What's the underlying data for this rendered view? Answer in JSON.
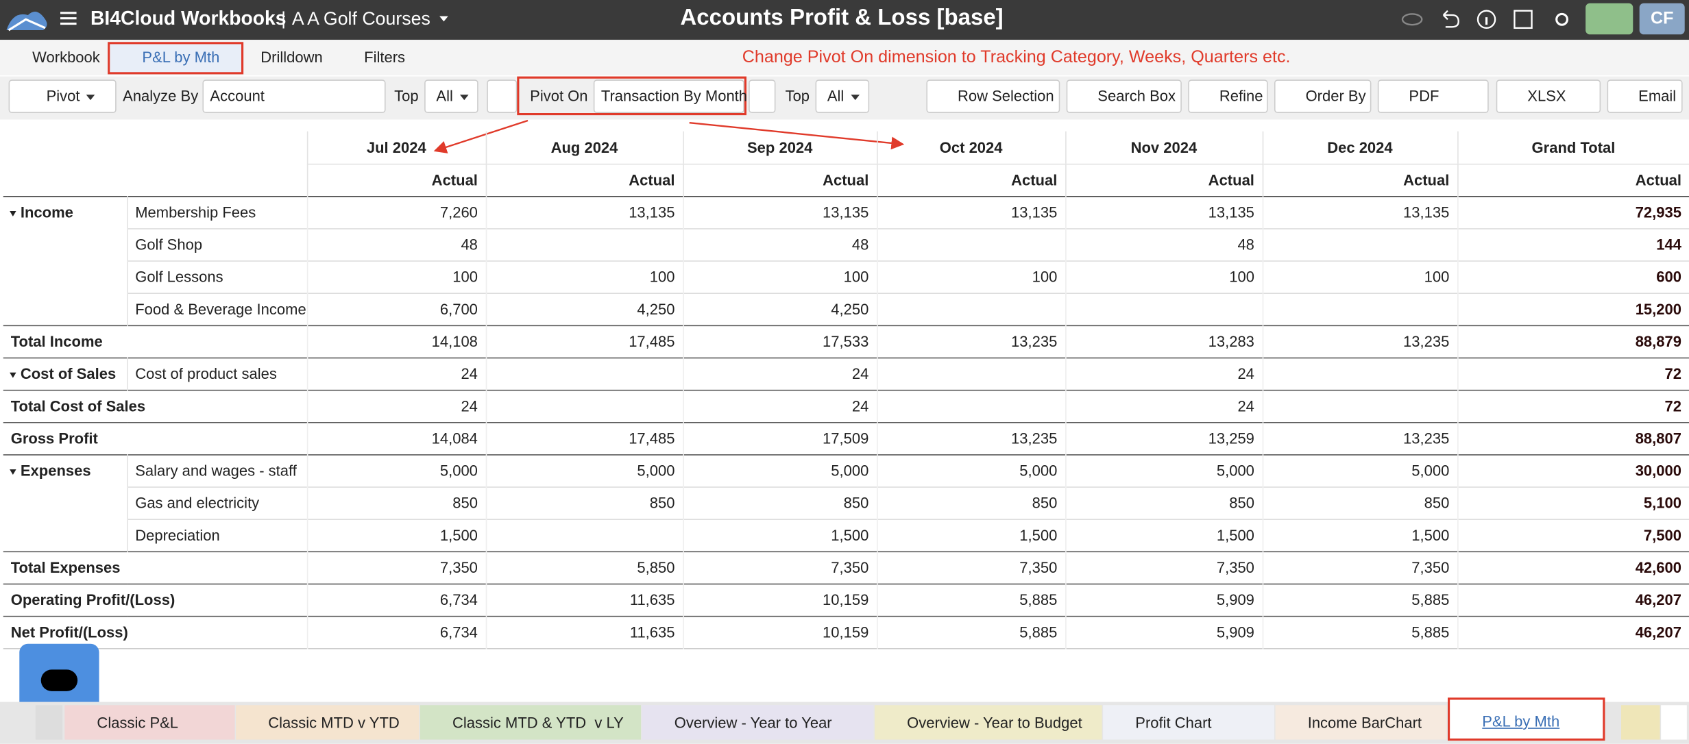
{
  "app": {
    "brand": "BI4Cloud Workbooks",
    "separator": "|",
    "company": "A A Golf Courses",
    "title": "Accounts Profit & Loss [base]",
    "user": "CF"
  },
  "nav_tabs": [
    "Workbook",
    "P&L by Mth",
    "Drilldown",
    "Filters"
  ],
  "annotation": "Change Pivot On dimension to Tracking Category, Weeks, Quarters etc.",
  "toolbar": {
    "pivot": "Pivot",
    "analyze_by_label": "Analyze By",
    "analyze_by": "Account",
    "top_label": "Top",
    "top": "All",
    "pivot_on_label": "Pivot On",
    "pivot_on": "Transaction By Month",
    "top2_label": "Top",
    "top2": "All",
    "buttons": [
      "Row Selection",
      "Search Box",
      "Refine",
      "Order By",
      "PDF",
      "XLSX",
      "Email"
    ]
  },
  "table": {
    "columns": [
      "Jul 2024",
      "Aug 2024",
      "Sep 2024",
      "Oct 2024",
      "Nov 2024",
      "Dec 2024",
      "Grand Total"
    ],
    "measure": "Actual",
    "rows": [
      {
        "group": "Income",
        "label": "Membership Fees",
        "values": [
          "7,260",
          "13,135",
          "13,135",
          "13,135",
          "13,135",
          "13,135",
          "72,935"
        ]
      },
      {
        "label": "Golf Shop",
        "values": [
          "48",
          null,
          "48",
          null,
          "48",
          null,
          "144"
        ]
      },
      {
        "label": "Golf Lessons",
        "values": [
          "100",
          "100",
          "100",
          "100",
          "100",
          "100",
          "600"
        ]
      },
      {
        "label": "Food & Beverage Income",
        "values": [
          "6,700",
          "4,250",
          "4,250",
          null,
          null,
          null,
          "15,200"
        ]
      },
      {
        "total": "Total Income",
        "values": [
          "14,108",
          "17,485",
          "17,533",
          "13,235",
          "13,283",
          "13,235",
          "88,879"
        ]
      },
      {
        "group": "Cost of Sales",
        "label": "Cost of product sales",
        "values": [
          "24",
          null,
          "24",
          null,
          "24",
          null,
          "72"
        ]
      },
      {
        "total": "Total Cost of Sales",
        "values": [
          "24",
          null,
          "24",
          null,
          "24",
          null,
          "72"
        ]
      },
      {
        "total": "Gross Profit",
        "values": [
          "14,084",
          "17,485",
          "17,509",
          "13,235",
          "13,259",
          "13,235",
          "88,807"
        ]
      },
      {
        "group": "Expenses",
        "label": "Salary and wages - staff",
        "values": [
          "5,000",
          "5,000",
          "5,000",
          "5,000",
          "5,000",
          "5,000",
          "30,000"
        ]
      },
      {
        "label": "Gas and electricity",
        "values": [
          "850",
          "850",
          "850",
          "850",
          "850",
          "850",
          "5,100"
        ]
      },
      {
        "label": "Depreciation",
        "values": [
          "1,500",
          null,
          "1,500",
          "1,500",
          "1,500",
          "1,500",
          "7,500"
        ]
      },
      {
        "total": "Total Expenses",
        "values": [
          "7,350",
          "5,850",
          "7,350",
          "7,350",
          "7,350",
          "7,350",
          "42,600"
        ]
      },
      {
        "total": "Operating Profit/(Loss)",
        "values": [
          "6,734",
          "11,635",
          "10,159",
          "5,885",
          "5,909",
          "5,885",
          "46,207"
        ]
      },
      {
        "total": "Net Profit/(Loss)",
        "values": [
          "6,734",
          "11,635",
          "10,159",
          "5,885",
          "5,909",
          "5,885",
          "46,207"
        ]
      }
    ]
  },
  "bottom_tabs": [
    "Classic P&L",
    "Classic MTD v YTD",
    "Classic MTD & YTD  v LY",
    "Overview - Year to Year",
    "Overview - Year to Budget",
    "Profit Chart",
    "Income BarChart",
    "P&L by Mth"
  ]
}
